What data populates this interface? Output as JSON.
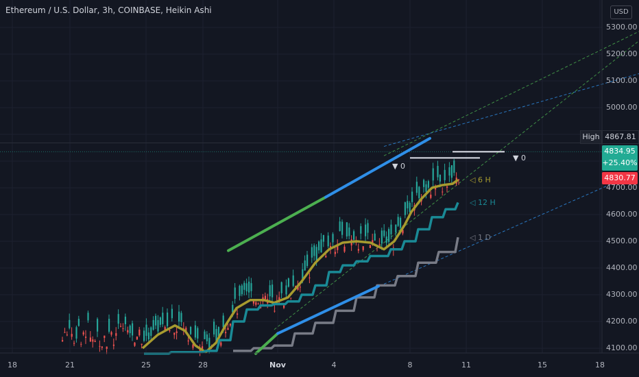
{
  "header": {
    "title": "Ethereum / U.S. Dollar, 3h, COINBASE, Heikin Ashi",
    "currency": "USD"
  },
  "price_scale": {
    "high_label": "High",
    "high_value": "4867.81",
    "last_price": "4834.95",
    "change_pct": "+25.40%",
    "low_value": "4830.77"
  },
  "annotations": {
    "label_6h": "◁ 6 H",
    "label_12h": "◁ 12 H",
    "label_1d": "◁ 1 D",
    "zero_left": "▼ 0",
    "zero_right": "▼ 0"
  },
  "colors": {
    "background": "#131722",
    "up": "#26a69a",
    "down": "#ef5350",
    "ma6": "#a79b2f",
    "ma12": "#1a8a96",
    "ma1d": "#787b86",
    "trend_blue": "#2f8fe8",
    "trend_green": "#4caf50"
  },
  "chart_data": {
    "type": "candlestick",
    "title": "Ethereum / U.S. Dollar, 3h, COINBASE, Heikin Ashi",
    "yticks": [
      "5300.00",
      "5200.00",
      "5100.00",
      "5000.00",
      "4900.00",
      "4800.00",
      "4700.00",
      "4600.00",
      "4500.00",
      "4400.00",
      "4300.00",
      "4200.00",
      "4100.00"
    ],
    "yvalues": [
      5300,
      5200,
      5100,
      5000,
      4900,
      4800,
      4700,
      4600,
      4500,
      4400,
      4300,
      4200,
      4100
    ],
    "ylim": [
      4080,
      5340
    ],
    "xticks": [
      "18",
      "21",
      "25",
      "28",
      "Nov",
      "4",
      "8",
      "11",
      "15",
      "18"
    ],
    "xlim": [
      0,
      933
    ],
    "high": 4867.81,
    "last": 4834.95,
    "low": 4830.77,
    "moving_averages": [
      {
        "name": "6 H",
        "points": [
          [
            208,
            4100
          ],
          [
            230,
            4150
          ],
          [
            255,
            4185
          ],
          [
            270,
            4165
          ],
          [
            285,
            4110
          ],
          [
            300,
            4085
          ],
          [
            315,
            4120
          ],
          [
            330,
            4190
          ],
          [
            345,
            4250
          ],
          [
            365,
            4280
          ],
          [
            385,
            4280
          ],
          [
            400,
            4270
          ],
          [
            420,
            4290
          ],
          [
            440,
            4350
          ],
          [
            460,
            4420
          ],
          [
            480,
            4470
          ],
          [
            500,
            4495
          ],
          [
            520,
            4500
          ],
          [
            540,
            4495
          ],
          [
            560,
            4470
          ],
          [
            575,
            4500
          ],
          [
            590,
            4560
          ],
          [
            600,
            4610
          ],
          [
            615,
            4660
          ],
          [
            630,
            4700
          ],
          [
            645,
            4710
          ],
          [
            660,
            4715
          ],
          [
            668,
            4730
          ]
        ]
      },
      {
        "name": "12 H",
        "points": [
          [
            210,
            4080
          ],
          [
            250,
            4085
          ],
          [
            280,
            4085
          ],
          [
            300,
            4090
          ],
          [
            320,
            4130
          ],
          [
            340,
            4200
          ],
          [
            360,
            4245
          ],
          [
            380,
            4260
          ],
          [
            400,
            4265
          ],
          [
            420,
            4275
          ],
          [
            440,
            4300
          ],
          [
            460,
            4335
          ],
          [
            480,
            4385
          ],
          [
            500,
            4410
          ],
          [
            520,
            4425
          ],
          [
            540,
            4445
          ],
          [
            555,
            4445
          ],
          [
            570,
            4470
          ],
          [
            590,
            4500
          ],
          [
            610,
            4545
          ],
          [
            630,
            4590
          ],
          [
            650,
            4620
          ],
          [
            668,
            4645
          ]
        ]
      },
      {
        "name": "1 D",
        "points": [
          [
            340,
            4090
          ],
          [
            370,
            4100
          ],
          [
            400,
            4110
          ],
          [
            430,
            4155
          ],
          [
            460,
            4195
          ],
          [
            490,
            4240
          ],
          [
            520,
            4290
          ],
          [
            550,
            4335
          ],
          [
            580,
            4370
          ],
          [
            610,
            4420
          ],
          [
            640,
            4460
          ],
          [
            668,
            4515
          ]
        ]
      }
    ],
    "trendlines": [
      {
        "color": "green",
        "from": [
          333,
          4465
        ],
        "to": [
          475,
          4665
        ]
      },
      {
        "color": "blue",
        "from": [
          475,
          4665
        ],
        "to": [
          627,
          4885
        ]
      },
      {
        "color": "green",
        "from": [
          373,
          4080
        ],
        "to": [
          405,
          4155
        ]
      },
      {
        "color": "blue",
        "from": [
          405,
          4155
        ],
        "to": [
          552,
          4332
        ]
      }
    ],
    "dashed_lines": [
      {
        "color": "blue",
        "from": [
          560,
          4855
        ],
        "to": [
          932,
          5127
        ]
      },
      {
        "color": "green",
        "from": [
          560,
          4820
        ],
        "to": [
          932,
          5285
        ]
      },
      {
        "color": "green",
        "from": [
          400,
          4170
        ],
        "to": [
          932,
          5250
        ]
      },
      {
        "color": "blue",
        "from": [
          560,
          4340
        ],
        "to": [
          932,
          4760
        ]
      }
    ],
    "horizontal_marks": [
      {
        "y": 4812,
        "from": 598,
        "to": 700
      },
      {
        "y": 4835,
        "from": 660,
        "to": 736
      }
    ]
  }
}
